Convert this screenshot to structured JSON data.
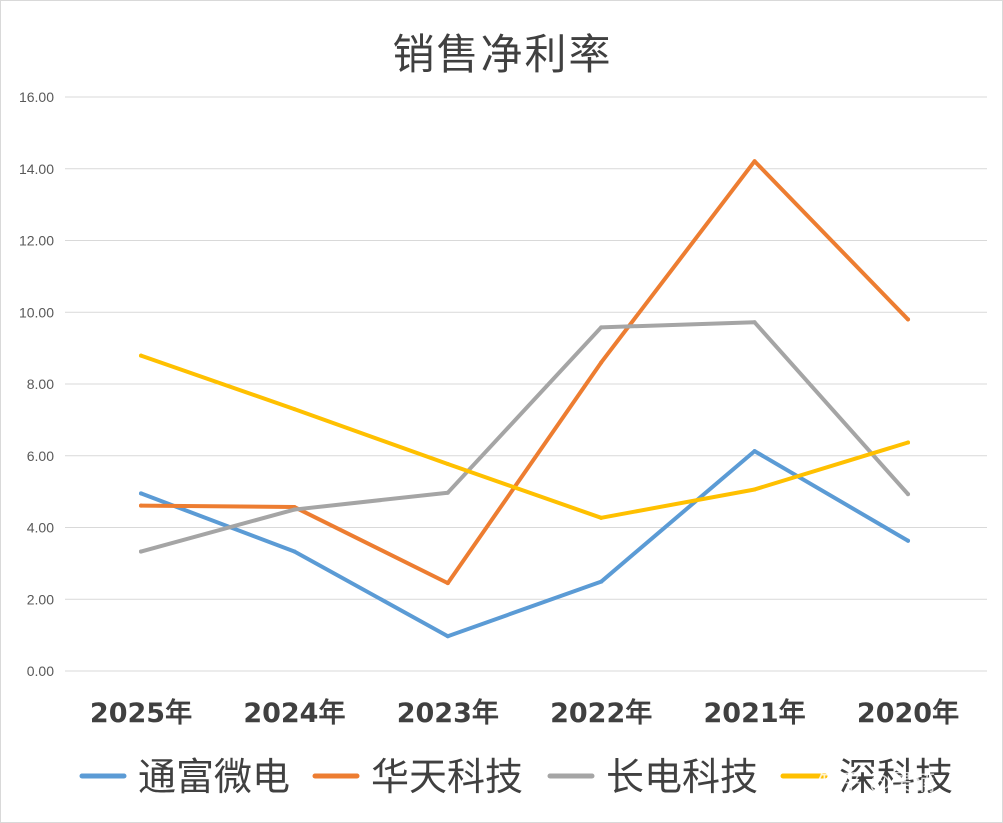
{
  "chart_data": {
    "type": "line",
    "title": "销售净利率",
    "categories": [
      "2025年",
      "2024年",
      "2023年",
      "2022年",
      "2021年",
      "2020年"
    ],
    "ylim": [
      0,
      16
    ],
    "yticks": [
      "0.00",
      "2.00",
      "4.00",
      "6.00",
      "8.00",
      "10.00",
      "12.00",
      "14.00",
      "16.00"
    ],
    "grid": true,
    "legend_position": "bottom",
    "series": [
      {
        "name": "通富微电",
        "color": "#5B9BD5",
        "values": [
          4.95,
          3.33,
          0.97,
          2.49,
          6.13,
          3.63
        ]
      },
      {
        "name": "华天科技",
        "color": "#ED7D31",
        "values": [
          4.61,
          4.57,
          2.45,
          8.6,
          14.21,
          9.8
        ]
      },
      {
        "name": "长电科技",
        "color": "#A5A5A5",
        "values": [
          3.33,
          4.5,
          4.97,
          9.58,
          9.72,
          4.93
        ]
      },
      {
        "name": "深科技",
        "color": "#FFC000",
        "values": [
          8.79,
          7.3,
          5.77,
          4.27,
          5.06,
          6.37
        ]
      }
    ]
  },
  "watermark": "知乎 @昊楠"
}
